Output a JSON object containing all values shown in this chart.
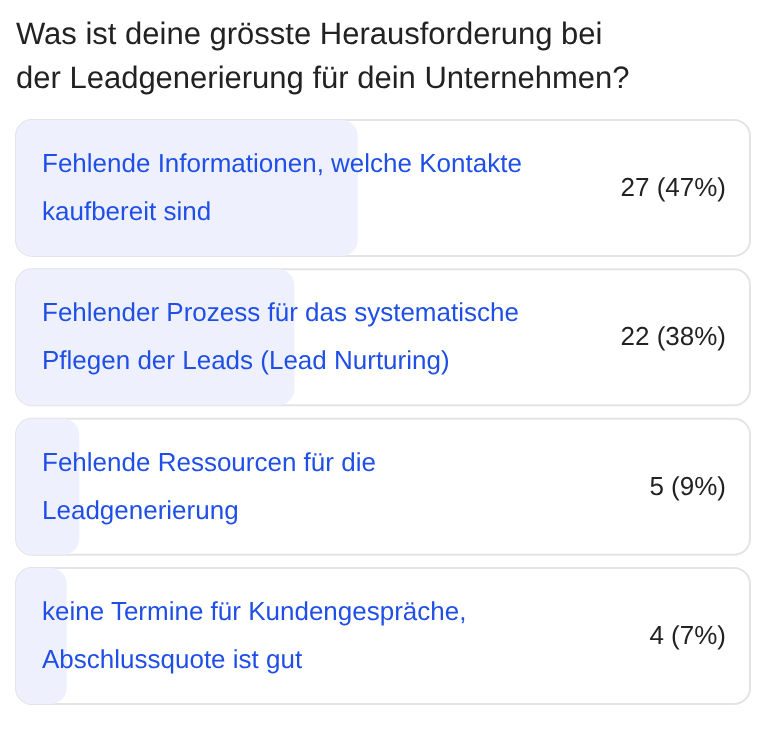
{
  "chart_data": {
    "type": "bar",
    "orientation": "horizontal",
    "title": "Was ist deine grösste Herausforderung bei der Leadgenerierung für dein Unternehmen?",
    "categories": [
      "Fehlende Informationen, welche Kontakte kaufbereit sind",
      "Fehlender Prozess für das systematische Pflegen der Leads (Lead Nurturing)",
      "Fehlende Ressourcen für die Leadgenerierung",
      "keine Termine für Kundengespräche, Abschlussquote ist gut"
    ],
    "values": [
      27,
      22,
      5,
      4
    ],
    "value_labels": [
      "27 (47%)",
      "22 (38%)",
      "5 (9%)",
      "4 (7%)"
    ],
    "color": "#eef1fd",
    "xlim": [
      0,
      58
    ],
    "tick_labels": false
  }
}
